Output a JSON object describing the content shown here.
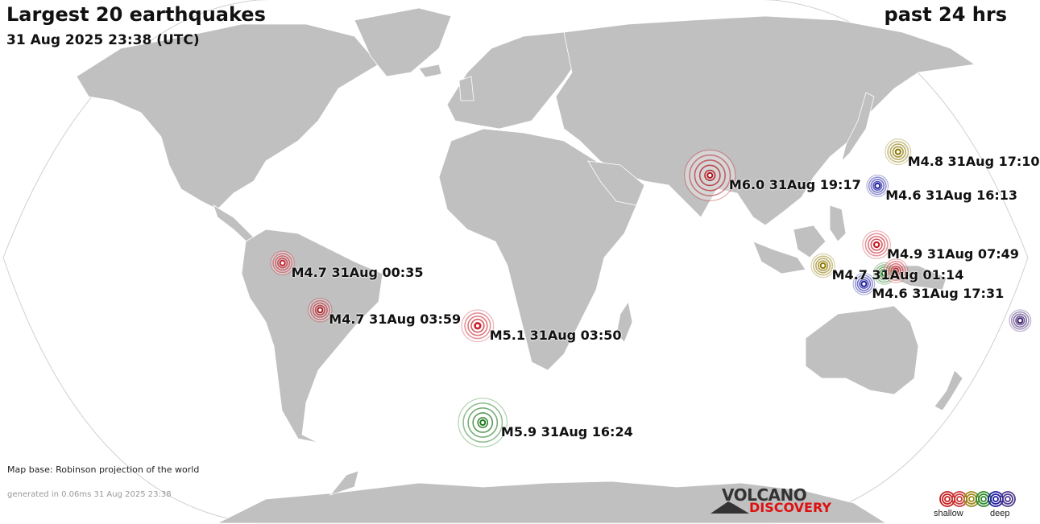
{
  "header": {
    "title": "Largest 20 earthquakes",
    "datetime": "31 Aug 2025 23:38 (UTC)",
    "period": "past 24 hrs"
  },
  "footer": {
    "map_base": "Map base: Robinson projection of the world",
    "generated": "generated in 0.06ms 31 Aug 2025 23:38"
  },
  "logo": {
    "line1": "VOLCANO",
    "line2": "DISCOVERY"
  },
  "depth_legend": {
    "shallow_label": "shallow",
    "deep_label": "deep",
    "colors": [
      "#c81e1e",
      "#c83c3c",
      "#a08c1e",
      "#2e8b2e",
      "#1e1ea0",
      "#503c8c"
    ]
  },
  "colors": {
    "ocean": "#ffffff",
    "land": "#c0c0c0",
    "border": "#ffffff",
    "graticule_frame": "#d0d0d0"
  },
  "quakes": [
    {
      "label": "M6.0 31Aug 19:17",
      "mag": 6.0,
      "lon": 70.7,
      "lat": 34.5,
      "depth_class": "shallow",
      "color": "#b4141e"
    },
    {
      "label": "M4.8 31Aug 17:10",
      "mag": 4.8,
      "lon": 142.5,
      "lat": 43.5,
      "depth_class": "intermediate",
      "color": "#8c7800"
    },
    {
      "label": "M4.6 31Aug 16:13",
      "mag": 4.6,
      "lon": 130.5,
      "lat": 30.5,
      "depth_class": "deep",
      "color": "#1e1ea0"
    },
    {
      "label": "M4.9 31Aug 07:49",
      "mag": 4.9,
      "lon": 126.5,
      "lat": 8.0,
      "depth_class": "shallow",
      "color": "#c81e2a"
    },
    {
      "label": "M4.7 31Aug 01:14",
      "mag": 4.7,
      "lon": 107.5,
      "lat": 0.0,
      "depth_class": "intermediate",
      "color": "#8c7800"
    },
    {
      "label": "M4.6 31Aug 17:31",
      "mag": 4.6,
      "lon": 122.0,
      "lat": -7.0,
      "depth_class": "deep",
      "color": "#1e1ea0"
    },
    {
      "label": "",
      "mag": 4.6,
      "lon": 129.0,
      "lat": -3.0,
      "depth_class": "medium",
      "color": "#1e781e"
    },
    {
      "label": "",
      "mag": 4.7,
      "lon": 133.0,
      "lat": -2.0,
      "depth_class": "shallow",
      "color": "#c81e2a"
    },
    {
      "label": "",
      "mag": 4.6,
      "lon": 179.0,
      "lat": -21.0,
      "depth_class": "very-deep",
      "color": "#3c1e6e"
    },
    {
      "label": "M4.7 31Aug 00:35",
      "mag": 4.7,
      "lon": -81.5,
      "lat": 1.0,
      "depth_class": "shallow",
      "color": "#c81e2a"
    },
    {
      "label": "M4.7 31Aug 03:59",
      "mag": 4.7,
      "lon": -69.0,
      "lat": -17.0,
      "depth_class": "shallow",
      "color": "#b4141e"
    },
    {
      "label": "M5.1 31Aug 03:50",
      "mag": 5.1,
      "lon": -13.5,
      "lat": -23.0,
      "depth_class": "shallow",
      "color": "#c81e2a"
    },
    {
      "label": "M5.9 31Aug 16:24",
      "mag": 5.9,
      "lon": -13.0,
      "lat": -60.0,
      "depth_class": "medium",
      "color": "#1e7a1e"
    }
  ]
}
